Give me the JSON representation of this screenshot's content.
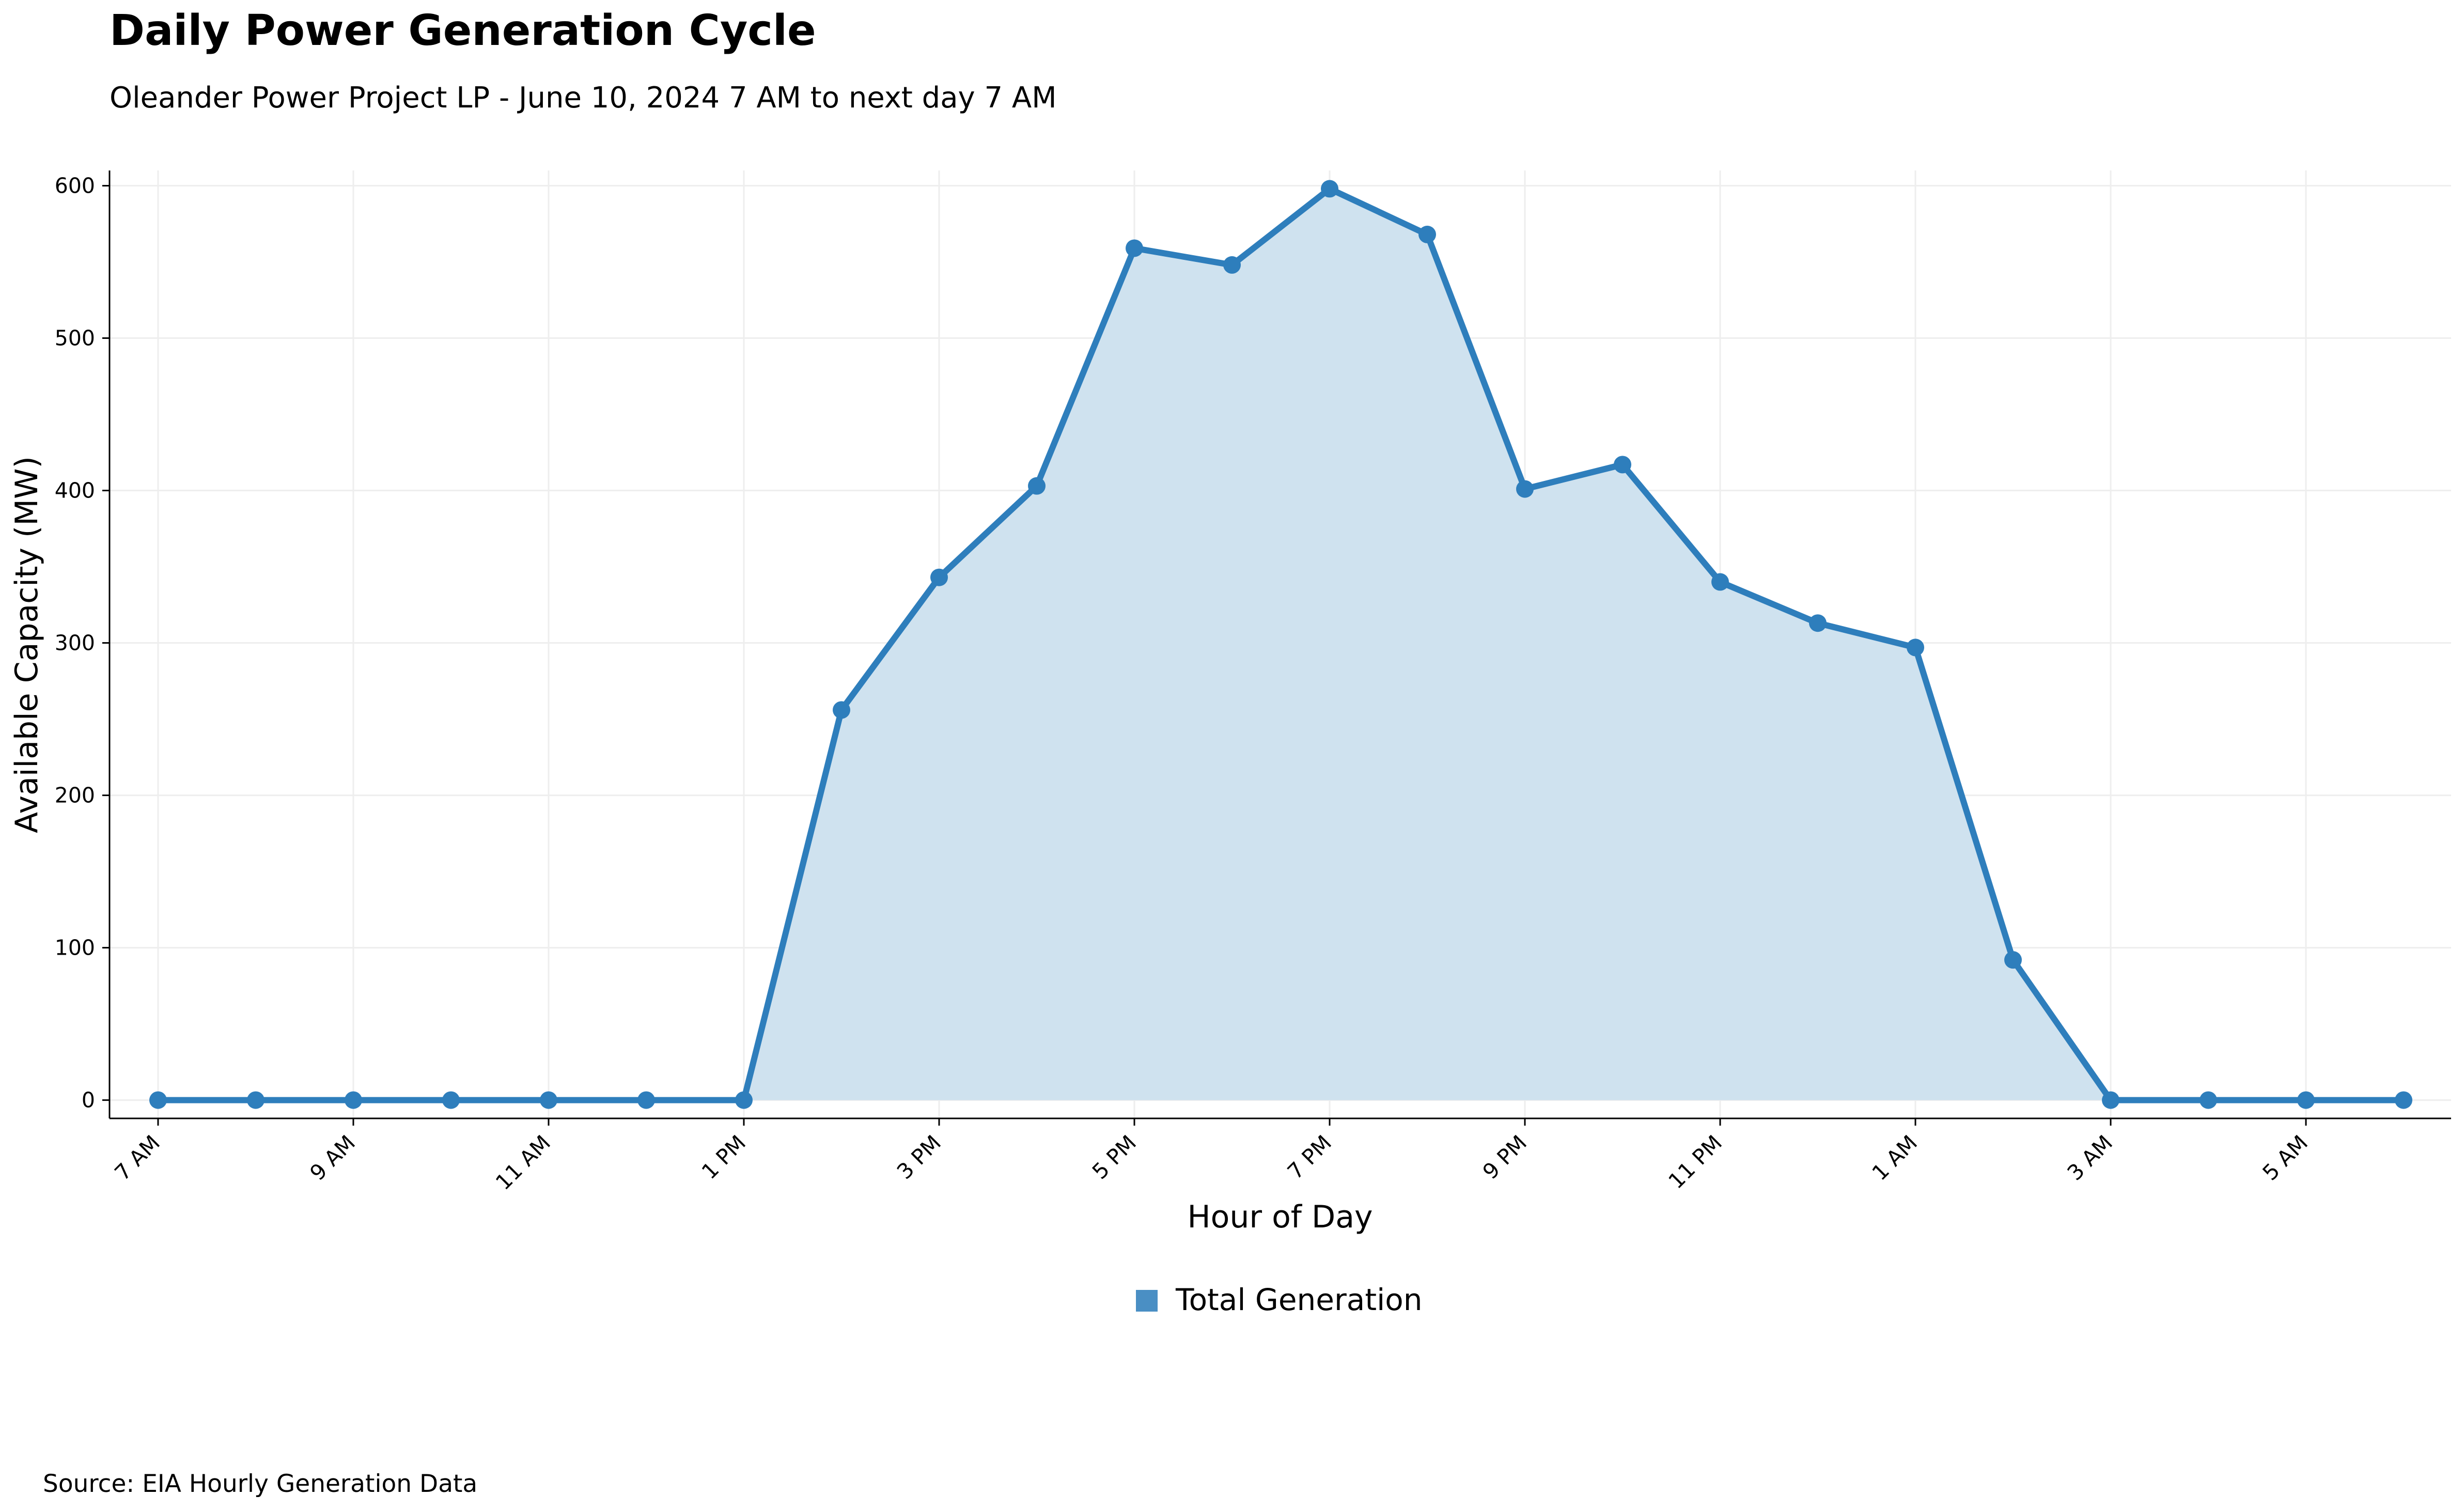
{
  "chart_data": {
    "type": "area",
    "title": "Daily Power Generation Cycle",
    "subtitle": "Oleander Power Project LP - June 10, 2024 7 AM to next day 7 AM",
    "xlabel": "Hour of Day",
    "ylabel": "Available Capacity (MW)",
    "x": [
      "7 AM",
      "8 AM",
      "9 AM",
      "10 AM",
      "11 AM",
      "12 PM",
      "1 PM",
      "2 PM",
      "3 PM",
      "4 PM",
      "5 PM",
      "6 PM",
      "7 PM",
      "8 PM",
      "9 PM",
      "10 PM",
      "11 PM",
      "12 AM",
      "1 AM",
      "2 AM",
      "3 AM",
      "4 AM",
      "5 AM",
      "6 AM"
    ],
    "x_tick_labels": [
      "7 AM",
      "9 AM",
      "11 AM",
      "1 PM",
      "3 PM",
      "5 PM",
      "7 PM",
      "9 PM",
      "11 PM",
      "1 AM",
      "3 AM",
      "5 AM"
    ],
    "y_ticks": [
      0,
      100,
      200,
      300,
      400,
      500,
      600
    ],
    "ylim": [
      -12,
      610
    ],
    "series": [
      {
        "name": "Total Generation",
        "values": [
          0,
          0,
          0,
          0,
          0,
          0,
          0,
          256,
          343,
          403,
          559,
          548,
          598,
          568,
          401,
          417,
          340,
          313,
          297,
          92,
          0,
          0,
          0,
          0
        ],
        "color": "#2e7ebc"
      }
    ],
    "legend": {
      "position": "bottom-center",
      "label": "Total Generation",
      "color": "#4a8fc4"
    },
    "grid": true,
    "source": "Source: EIA Hourly Generation Data"
  }
}
